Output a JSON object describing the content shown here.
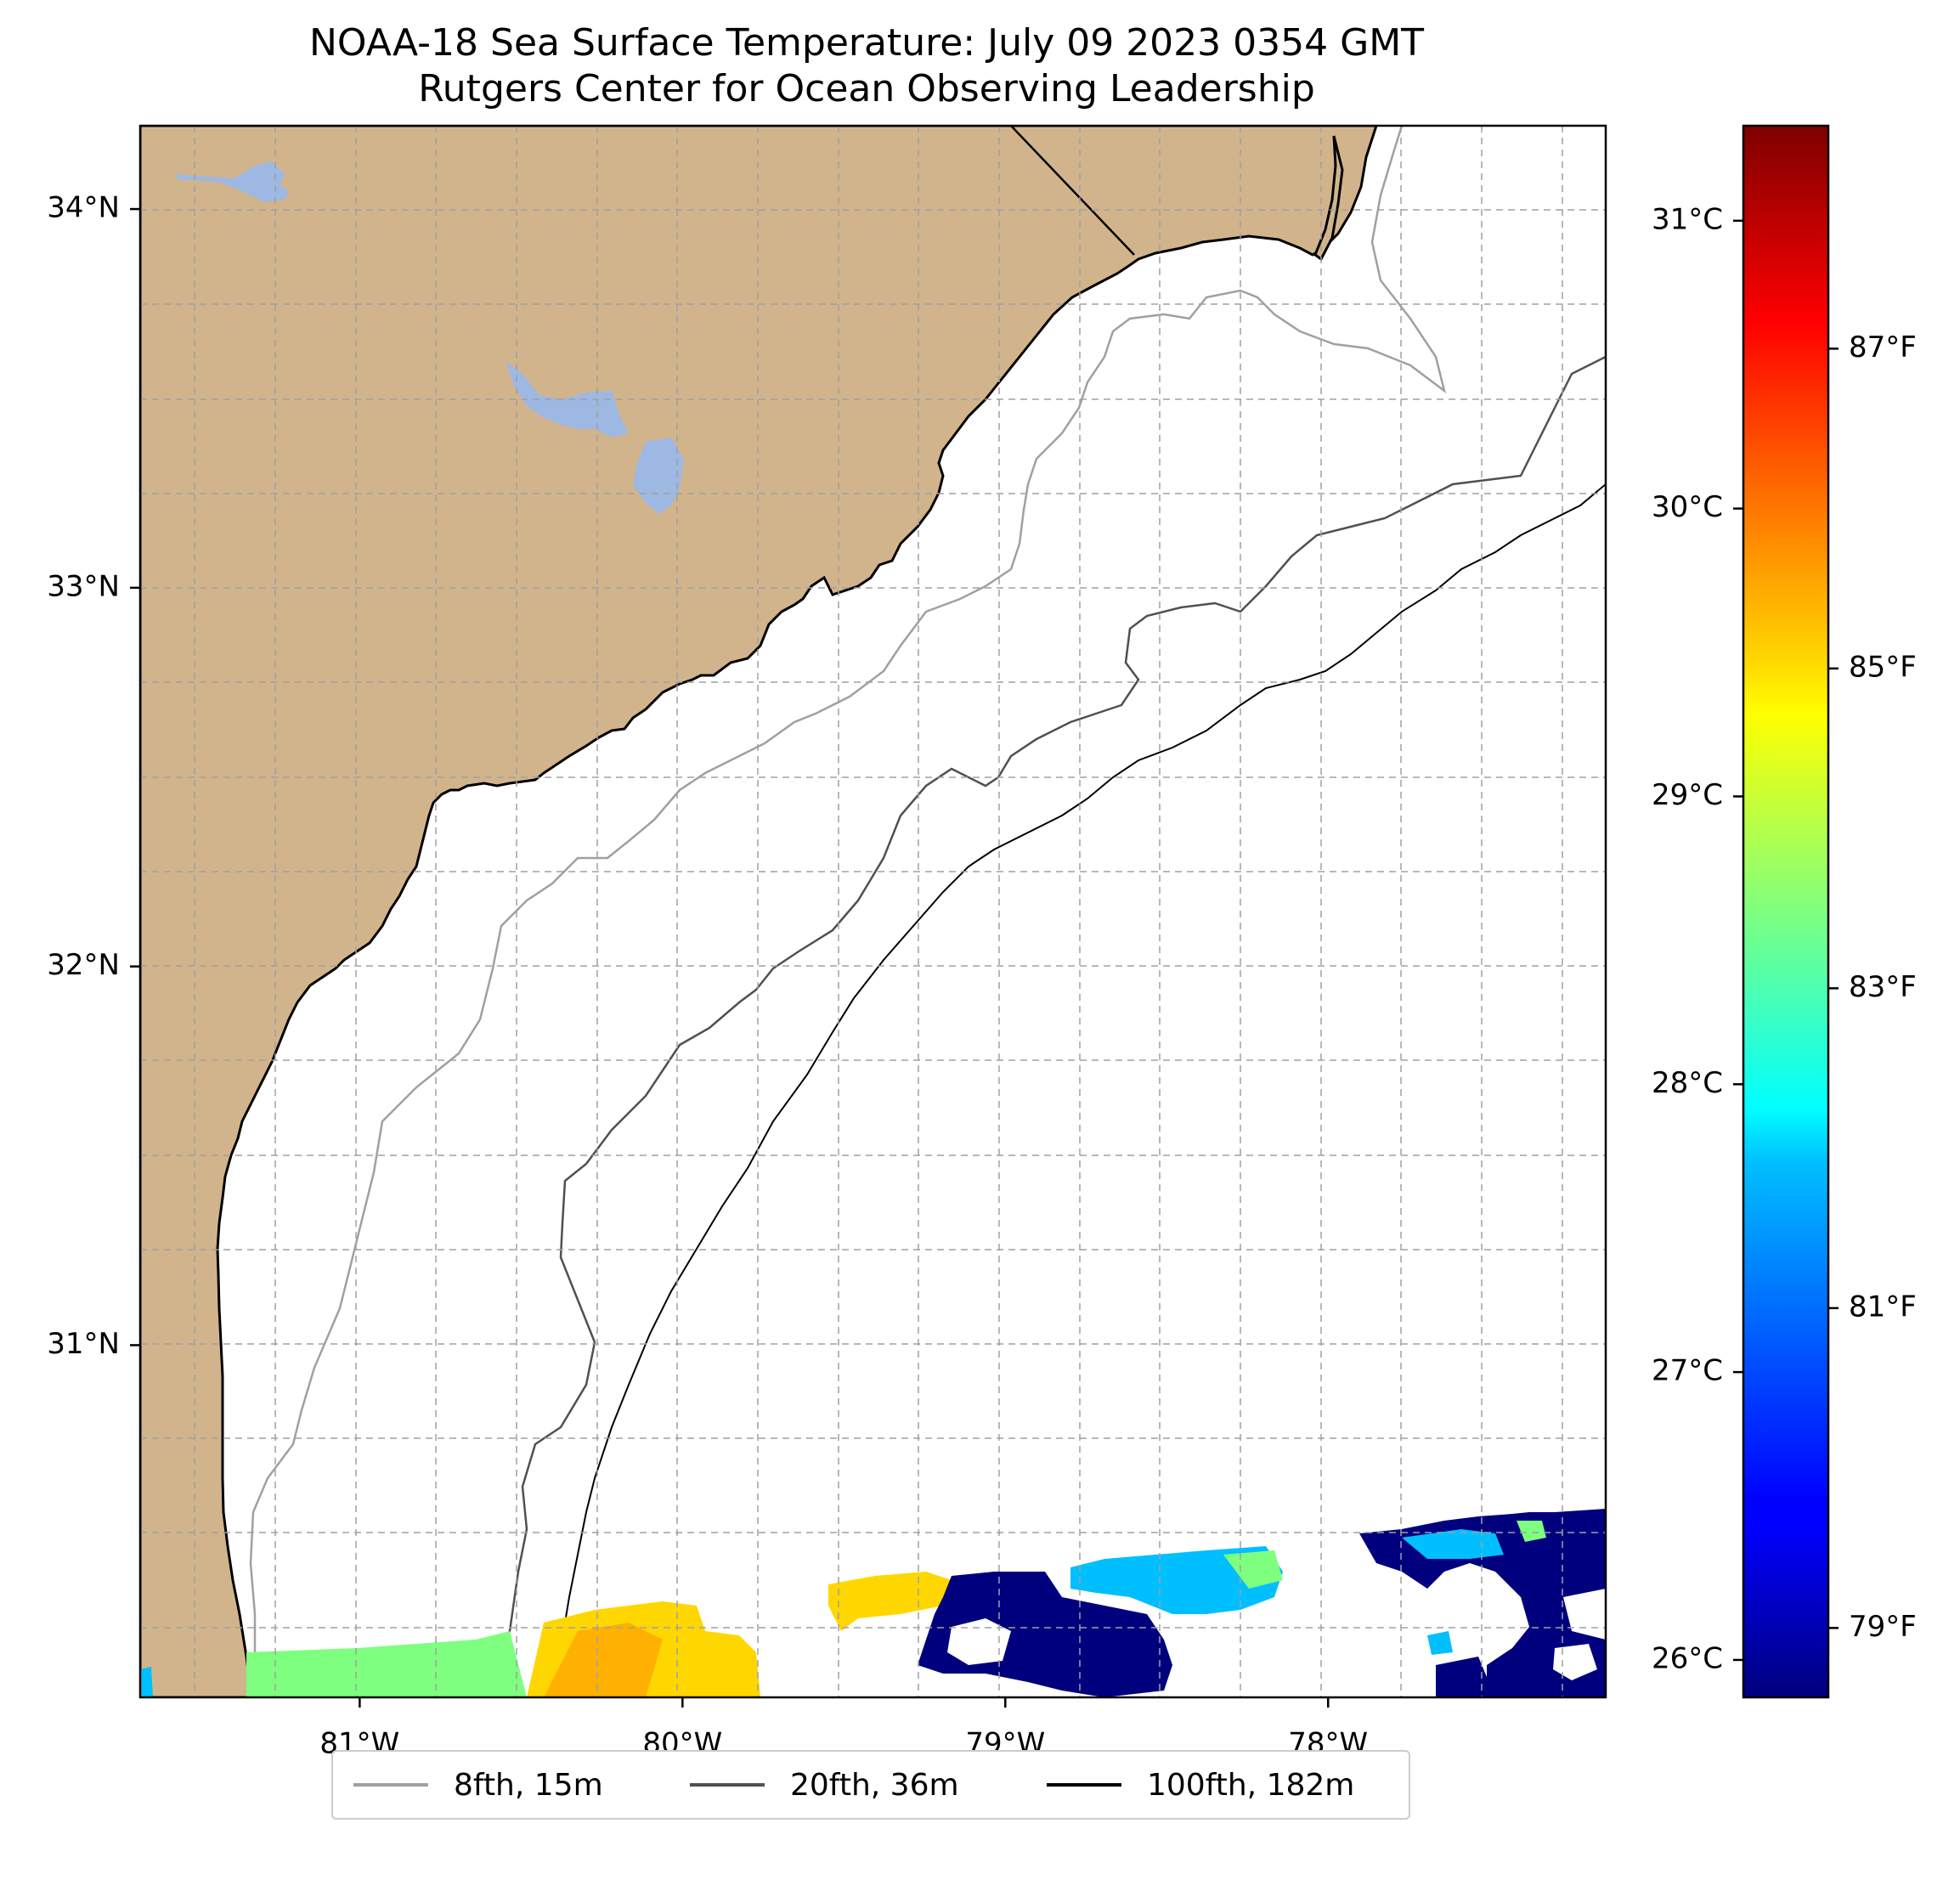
{
  "title": {
    "line1": "NOAA-18 Sea Surface Temperature: July 09 2023 0354 GMT",
    "line2": "Rutgers Center for Ocean Observing Leadership"
  },
  "map": {
    "lon_range": [
      -81.68,
      -77.14
    ],
    "lat_range": [
      30.07,
      34.22
    ],
    "lat_ticks": [
      {
        "value": 34,
        "label": "34°N"
      },
      {
        "value": 33,
        "label": "33°N"
      },
      {
        "value": 32,
        "label": "32°N"
      },
      {
        "value": 31,
        "label": "31°N"
      }
    ],
    "lon_ticks": [
      {
        "value": -81,
        "label": "81°W"
      },
      {
        "value": -80,
        "label": "80°W"
      },
      {
        "value": -79,
        "label": "79°W"
      },
      {
        "value": -78,
        "label": "78°W"
      }
    ],
    "land_color": "#d2b48c",
    "water_body_color": "#9db8e2",
    "gridlines": "dashed"
  },
  "colorbar": {
    "colormap": "jet",
    "celsius_ticks": [
      {
        "value": 31,
        "label": "31°C"
      },
      {
        "value": 30,
        "label": "30°C"
      },
      {
        "value": 29,
        "label": "29°C"
      },
      {
        "value": 28,
        "label": "28°C"
      },
      {
        "value": 27,
        "label": "27°C"
      },
      {
        "value": 26,
        "label": "26°C"
      }
    ],
    "fahrenheit_ticks": [
      {
        "value": 87,
        "label": "87°F"
      },
      {
        "value": 85,
        "label": "85°F"
      },
      {
        "value": 83,
        "label": "83°F"
      },
      {
        "value": 81,
        "label": "81°F"
      },
      {
        "value": 79,
        "label": "79°F"
      }
    ]
  },
  "legend": {
    "placement": "bottom-center",
    "entries": [
      {
        "label": "8fth, 15m",
        "color": "#a0a0a0"
      },
      {
        "label": "20fth, 36m",
        "color": "#505050"
      },
      {
        "label": "100fth, 182m",
        "color": "#000000"
      }
    ]
  }
}
